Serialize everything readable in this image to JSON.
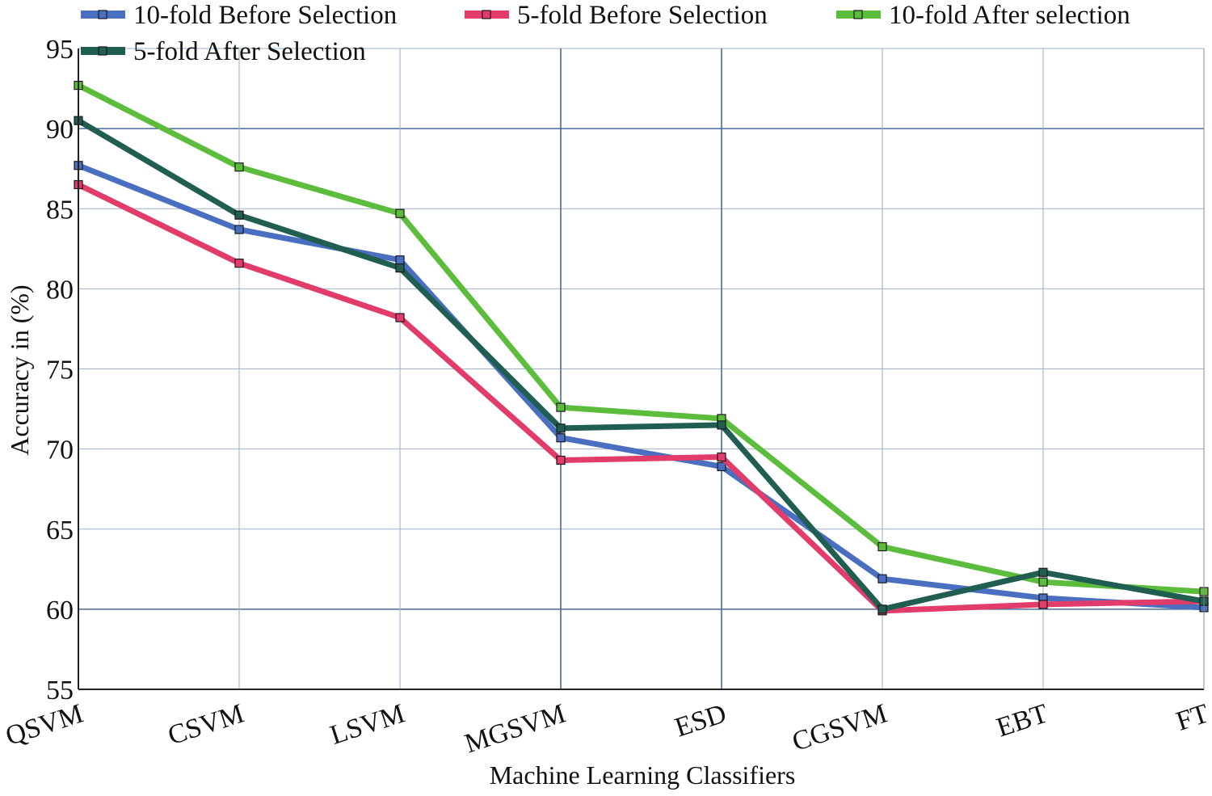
{
  "chart_data": {
    "type": "line",
    "title": "",
    "xlabel": "Machine Learning Classifiers",
    "ylabel": "Accuracy in (%)",
    "ylim": [
      55,
      95
    ],
    "yticks": [
      55,
      60,
      65,
      70,
      75,
      80,
      85,
      90,
      95
    ],
    "grid": true,
    "legend_position": "top",
    "categories": [
      "QSVM",
      "CSVM",
      "LSVM",
      "MGSVM",
      "ESD",
      "CGSVM",
      "EBT",
      "FT"
    ],
    "series": [
      {
        "name": "10-fold Before Selection",
        "color": "#4a6fc0",
        "values": [
          87.7,
          83.7,
          81.8,
          70.7,
          68.9,
          61.9,
          60.7,
          60.1
        ]
      },
      {
        "name": "5-fold Before Selection",
        "color": "#e23c6a",
        "values": [
          86.5,
          81.6,
          78.2,
          69.3,
          69.5,
          59.9,
          60.3,
          60.5
        ]
      },
      {
        "name": "10-fold After selection",
        "color": "#5cbd3c",
        "values": [
          92.7,
          87.6,
          84.7,
          72.6,
          71.9,
          63.9,
          61.7,
          61.1
        ]
      },
      {
        "name": "5-fold After Selection",
        "color": "#1f5e50",
        "values": [
          90.5,
          84.6,
          81.3,
          71.3,
          71.5,
          60.0,
          62.3,
          60.5
        ]
      }
    ]
  }
}
